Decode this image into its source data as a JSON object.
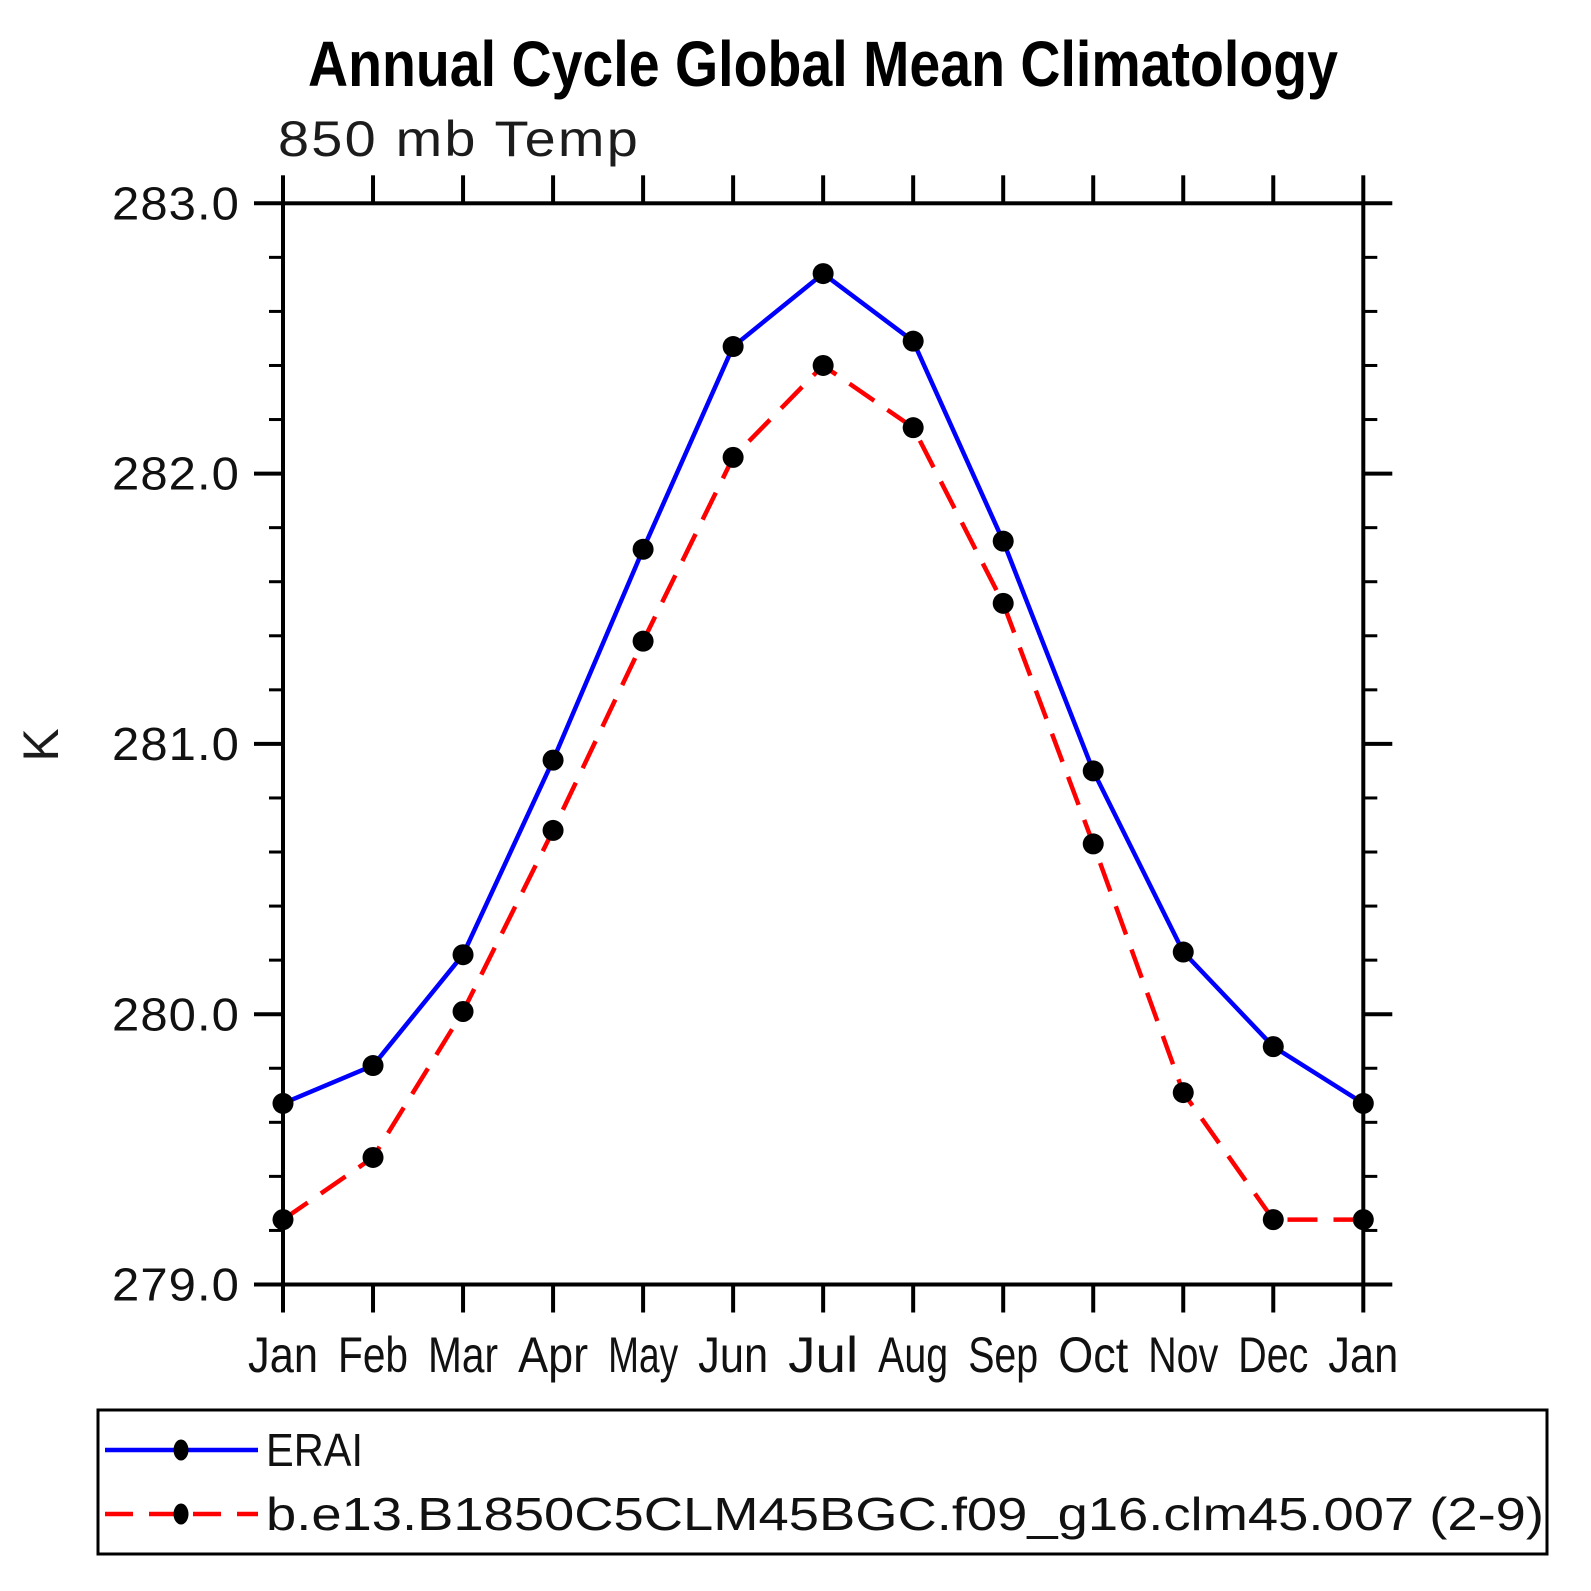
{
  "figure": {
    "background": "#ffffff",
    "text_color": "#000000"
  },
  "chart_data": {
    "type": "line",
    "title": "Annual Cycle Global Mean Climatology",
    "subtitle": "850 mb Temp",
    "xlabel": "",
    "ylabel": "K",
    "categories": [
      "Jan",
      "Feb",
      "Mar",
      "Apr",
      "May",
      "Jun",
      "Jul",
      "Aug",
      "Sep",
      "Oct",
      "Nov",
      "Dec",
      "Jan"
    ],
    "ylim": [
      279.0,
      283.0
    ],
    "ytick_major_interval": 1.0,
    "ytick_minor_interval": 0.2,
    "ytick_labels": [
      "279.0",
      "280.0",
      "281.0",
      "282.0",
      "283.0"
    ],
    "grid": false,
    "frame": "box-with-outward-ticks",
    "legend_position": "bottom-left-boxed",
    "marker_color": "#000000",
    "series": [
      {
        "name": "ERAI",
        "color": "#0000ff",
        "line_style": "solid",
        "marker": "filled-circle",
        "values": [
          279.67,
          279.81,
          280.22,
          280.94,
          281.72,
          282.47,
          282.74,
          282.49,
          281.75,
          280.9,
          280.23,
          279.88,
          279.67
        ]
      },
      {
        "name": "b.e13.B1850C5CLM45BGC.f09_g16.clm45.007 (2-9)",
        "color": "#ff0000",
        "line_style": "dashed",
        "marker": "filled-circle",
        "values": [
          279.24,
          279.47,
          280.01,
          280.68,
          281.38,
          282.06,
          282.4,
          282.17,
          281.52,
          280.63,
          279.71,
          279.24,
          279.24
        ]
      }
    ]
  }
}
